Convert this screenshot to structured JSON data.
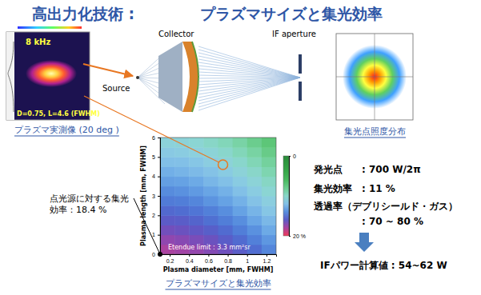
{
  "title": [
    "高出力化技術 :",
    "プラズマサイズと集光効率"
  ],
  "plasma_image": {
    "frequency": "8 kHz",
    "measurement": {
      "label": "D=0.75, L=4.6 (FWHM)",
      "diameter": 0.75,
      "length": 4.6
    },
    "caption": "プラズマ実測像 (20 deg )"
  },
  "optics": {
    "collector": "Collector",
    "source": "Source",
    "aperture": "IF aperture"
  },
  "focus_image": {
    "caption": "集光点照度分布"
  },
  "point_source_note": "点光源に対する集光効率：18.4 %",
  "chart_data": {
    "type": "heatmap",
    "title": "プラズマサイズと集光効率",
    "x_label": "Plasma diameter [mm, FWHM]",
    "y_label": "Plasma length [mm, FWHM]",
    "x": [
      0.175,
      0.325,
      0.475,
      0.625,
      0.775,
      0.925,
      1.075,
      1.225
    ],
    "y": [
      0.25,
      0.75,
      1.25,
      1.75,
      2.25,
      2.75,
      3.25,
      3.75,
      4.25,
      4.75,
      5.25,
      5.75
    ],
    "cells": [
      [
        18.0,
        17.8,
        17.5,
        17.1,
        16.6,
        15.9,
        15.2,
        14.3
      ],
      [
        17.4,
        17.2,
        16.9,
        16.5,
        15.9,
        15.3,
        14.5,
        13.7
      ],
      [
        16.7,
        16.5,
        16.2,
        15.8,
        15.3,
        14.6,
        13.9,
        13.0
      ],
      [
        16.0,
        15.9,
        15.6,
        15.1,
        14.6,
        14.0,
        13.2,
        12.4
      ],
      [
        15.4,
        15.2,
        14.9,
        14.5,
        14.0,
        13.3,
        12.6,
        11.7
      ],
      [
        14.7,
        14.6,
        14.3,
        13.8,
        13.3,
        12.7,
        11.9,
        11.1
      ],
      [
        14.1,
        13.9,
        13.6,
        13.2,
        12.7,
        12.0,
        11.3,
        10.4
      ],
      [
        13.4,
        13.3,
        13.0,
        12.5,
        12.0,
        11.4,
        10.6,
        9.8
      ],
      [
        12.8,
        12.6,
        12.3,
        11.9,
        11.4,
        10.7,
        10.0,
        9.1
      ],
      [
        12.1,
        12.0,
        11.7,
        11.2,
        10.7,
        10.1,
        9.3,
        8.5
      ],
      [
        11.5,
        11.3,
        11.0,
        10.6,
        10.1,
        9.4,
        8.7,
        7.8
      ],
      [
        10.8,
        10.7,
        10.4,
        9.9,
        9.4,
        8.8,
        8.0,
        7.2
      ]
    ],
    "xlim": [
      0.1,
      1.3
    ],
    "ylim": [
      0,
      6
    ],
    "xticks": [
      0.2,
      0.4,
      0.6,
      0.8,
      1,
      1.2
    ],
    "yticks": [
      0,
      1,
      2,
      3,
      4,
      5,
      6
    ],
    "colorbar": {
      "range": [
        0,
        20
      ],
      "ticks": [
        0,
        {
          "value": 20,
          "label": "20 %"
        }
      ]
    },
    "annotations": [
      "Etendue limit : 3.3 mm²sr"
    ]
  },
  "results": [
    {
      "label": "発光点",
      "value": ": 700 W/2π"
    },
    {
      "label": "集光効率",
      "value": ": 11 %"
    },
    {
      "label": "透過率（デブリシールド・ガス）",
      "value": ": 70 ~ 80 %"
    }
  ],
  "conclusion": "IFパワー計算値 : 54~62 W"
}
